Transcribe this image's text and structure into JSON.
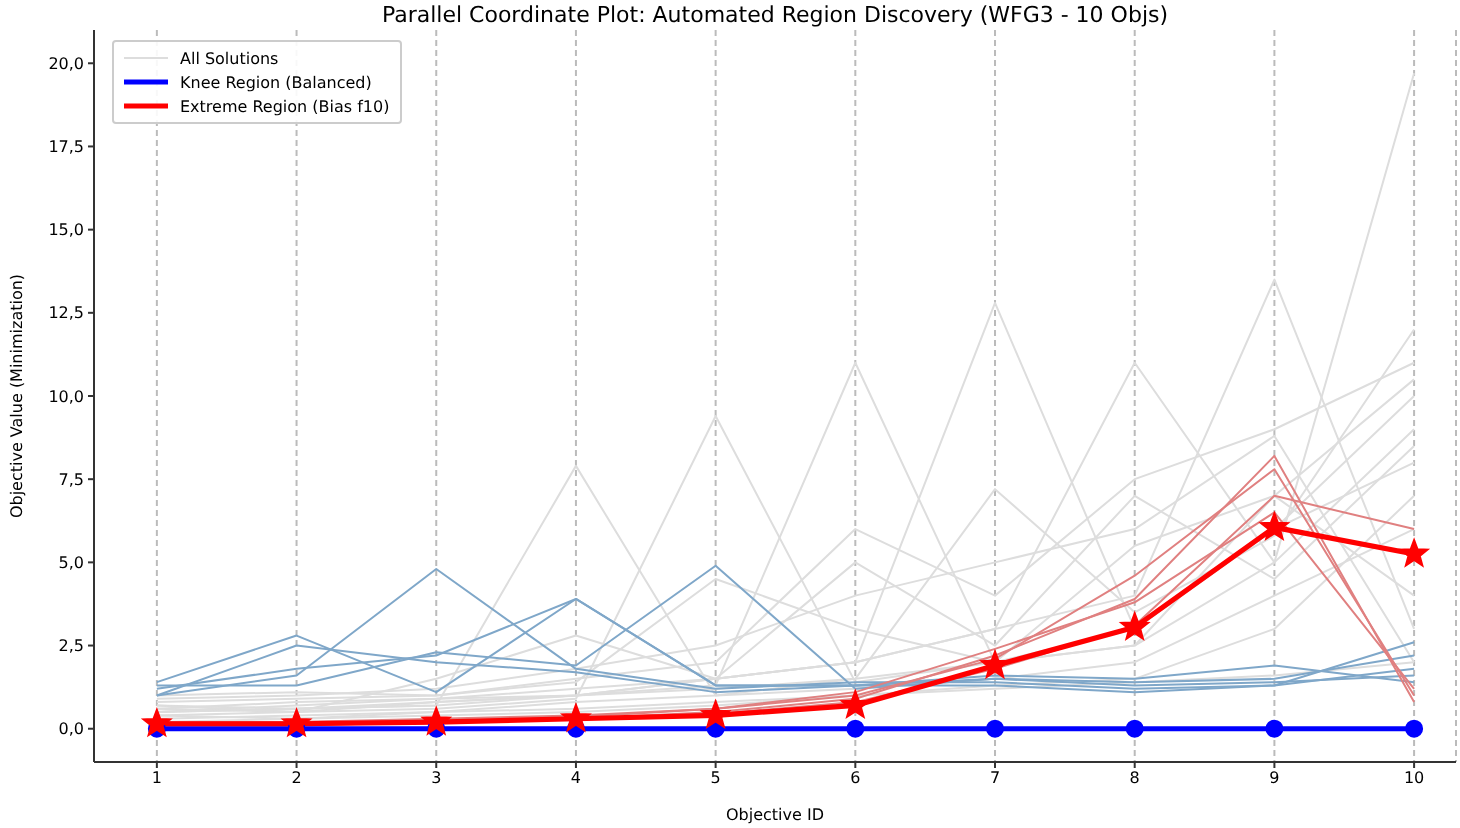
{
  "chart_data": {
    "type": "line",
    "title": "Parallel Coordinate Plot: Automated Region Discovery (WFG3 - 10 Objs)",
    "xlabel": "Objective ID",
    "ylabel": "Objective Value (Minimization)",
    "x": [
      1,
      2,
      3,
      4,
      5,
      6,
      7,
      8,
      9,
      10
    ],
    "xlim": [
      0.55,
      10.3
    ],
    "xticks": [
      1,
      2,
      3,
      4,
      5,
      6,
      7,
      8,
      9,
      10
    ],
    "ylim": [
      -1,
      21
    ],
    "yticks": [
      {
        "value": 0,
        "label": "0,0"
      },
      {
        "value": 2.5,
        "label": "2,5"
      },
      {
        "value": 5,
        "label": "5,0"
      },
      {
        "value": 7.5,
        "label": "7,5"
      },
      {
        "value": 10,
        "label": "10,0"
      },
      {
        "value": 12.5,
        "label": "12,5"
      },
      {
        "value": 15,
        "label": "15,0"
      },
      {
        "value": 17.5,
        "label": "17,5"
      },
      {
        "value": 20,
        "label": "20,0"
      }
    ],
    "grid": "x",
    "legend": "top left",
    "marker": "none",
    "series": [
      {
        "name": "All Solutions",
        "color": "#dddddd",
        "values": [
          0.6,
          0.5,
          0.8,
          1.0,
          1.2,
          1.5,
          2.0,
          2.5,
          5,
          19.7
        ]
      },
      {
        "color": "#dddddd",
        "values": [
          0.5,
          0.6,
          0.7,
          7.9,
          1.0,
          1.2,
          1.5,
          2,
          4,
          6
        ]
      },
      {
        "color": "#dddddd",
        "values": [
          0.4,
          0.5,
          0.6,
          0.9,
          9.4,
          1.4,
          2,
          3,
          6,
          8
        ]
      },
      {
        "color": "#dddddd",
        "values": [
          0.7,
          0.6,
          0.8,
          1.0,
          1.3,
          11,
          2,
          2.5,
          7,
          4
        ]
      },
      {
        "color": "#dddddd",
        "values": [
          0.5,
          0.6,
          0.7,
          1,
          1.5,
          2,
          12.8,
          3,
          6,
          10
        ]
      },
      {
        "color": "#dddddd",
        "values": [
          0.6,
          0.8,
          0.9,
          1.2,
          1.5,
          2,
          3,
          11,
          5,
          9
        ]
      },
      {
        "color": "#dddddd",
        "values": [
          0.5,
          0.7,
          0.9,
          1,
          1.5,
          2,
          3,
          4,
          13.5,
          3
        ]
      },
      {
        "color": "#dddddd",
        "values": [
          0.8,
          0.9,
          1,
          1.5,
          2,
          6,
          4,
          7.5,
          9,
          11
        ]
      },
      {
        "color": "#dddddd",
        "values": [
          0.3,
          0.4,
          0.5,
          0.8,
          1,
          1.5,
          7.2,
          3.5,
          5.8,
          12
        ]
      },
      {
        "color": "#dddddd",
        "values": [
          0.9,
          1,
          1.2,
          1.8,
          2.5,
          4,
          5,
          6,
          8.8,
          2
        ]
      },
      {
        "color": "#dddddd",
        "values": [
          0.2,
          0.3,
          0.4,
          0.5,
          0.7,
          1,
          1.3,
          1.5,
          3,
          7
        ]
      },
      {
        "color": "#dddddd",
        "values": [
          1,
          1.1,
          1,
          1.4,
          4.5,
          3,
          2,
          5.5,
          7,
          10.5
        ]
      },
      {
        "color": "#dddddd",
        "values": [
          0.4,
          0.3,
          0.5,
          0.6,
          0.8,
          1,
          1.2,
          1.4,
          1.6,
          2
        ]
      },
      {
        "color": "#dddddd",
        "values": [
          0.7,
          0.5,
          1.5,
          2.8,
          1.5,
          5,
          2.5,
          7,
          4.5,
          8.5
        ]
      },
      {
        "color": "#7fa7c9",
        "values": [
          1.4,
          2.8,
          1.1,
          3.9,
          1.3,
          1.3,
          1.5,
          1.3,
          1.4,
          1.6
        ]
      },
      {
        "color": "#7fa7c9",
        "values": [
          1.0,
          1.6,
          4.8,
          1.8,
          1.2,
          1.4,
          1.4,
          1.2,
          1.3,
          2.6
        ]
      },
      {
        "color": "#7fa7c9",
        "values": [
          1.3,
          1.3,
          2.3,
          1.9,
          4.9,
          1.2,
          1.5,
          1.4,
          1.5,
          2.2
        ]
      },
      {
        "color": "#7fa7c9",
        "values": [
          1.0,
          2.5,
          2.0,
          1.7,
          1.1,
          1.3,
          1.6,
          1.5,
          1.9,
          1.4
        ]
      },
      {
        "color": "#7fa7c9",
        "values": [
          1.2,
          1.8,
          2.2,
          3.9,
          1.3,
          1.3,
          1.3,
          1.1,
          1.3,
          1.8
        ]
      },
      {
        "color": "#e08080",
        "values": [
          0.1,
          0.1,
          0.2,
          0.3,
          0.5,
          0.9,
          2.2,
          3.9,
          8.2,
          0.8
        ]
      },
      {
        "color": "#e08080",
        "values": [
          0.2,
          0.2,
          0.25,
          0.35,
          0.6,
          1.0,
          2.1,
          4.6,
          7.8,
          1.0
        ]
      },
      {
        "color": "#e08080",
        "values": [
          0.1,
          0.15,
          0.2,
          0.3,
          0.45,
          0.8,
          1.8,
          3.1,
          7.0,
          6.0
        ]
      },
      {
        "color": "#e08080",
        "values": [
          0.15,
          0.2,
          0.3,
          0.4,
          0.6,
          1.1,
          2.4,
          3.8,
          6.5,
          1.2
        ]
      },
      {
        "name": "Knee Region (Balanced)",
        "color": "#0000ff",
        "marker": "circle",
        "values": [
          0,
          0,
          0,
          0,
          0,
          0,
          0,
          0,
          0,
          0
        ]
      },
      {
        "name": "Extreme Region (Bias f10)",
        "color": "#ff0000",
        "marker": "star",
        "values": [
          0.15,
          0.15,
          0.2,
          0.3,
          0.4,
          0.7,
          1.9,
          3.05,
          6.05,
          5.25
        ]
      }
    ]
  }
}
